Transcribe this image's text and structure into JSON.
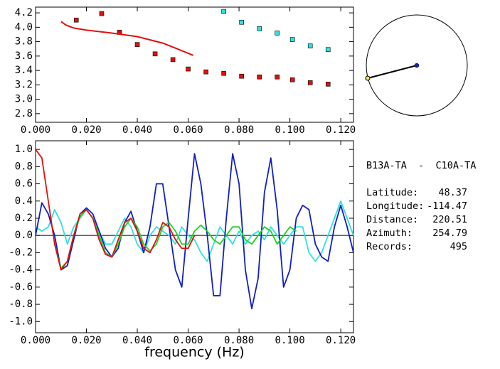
{
  "chart_data": [
    {
      "type": "scatter",
      "xlim": [
        0,
        0.125
      ],
      "ylim": [
        2.68,
        4.28
      ],
      "xticks": [
        {
          "value": 0,
          "label": "0.000"
        },
        {
          "value": 0.02,
          "label": "0.020"
        },
        {
          "value": 0.04,
          "label": "0.040"
        },
        {
          "value": 0.06,
          "label": "0.060"
        },
        {
          "value": 0.08,
          "label": "0.080"
        },
        {
          "value": 0.1,
          "label": "0.100"
        },
        {
          "value": 0.12,
          "label": "0.120"
        }
      ],
      "yticks": [
        2.8,
        {
          "value": 3,
          "label": "3.0"
        },
        3.2,
        3.4,
        3.6,
        3.8,
        {
          "value": 4,
          "label": "4.0"
        },
        4.2
      ],
      "series": [
        {
          "marker": "square",
          "color": "#e01010",
          "x": [
            0.016,
            0.026,
            0.033,
            0.04,
            0.047,
            0.054,
            0.06,
            0.067,
            0.074,
            0.081,
            0.088,
            0.095,
            0.101,
            0.108,
            0.115
          ],
          "values": [
            4.1,
            4.19,
            3.93,
            3.76,
            3.63,
            3.55,
            3.42,
            3.38,
            3.36,
            3.32,
            3.31,
            3.31,
            3.27,
            3.23,
            3.21
          ]
        },
        {
          "marker": "square",
          "color": "#30e0e0",
          "x": [
            0.074,
            0.081,
            0.088,
            0.095,
            0.101,
            0.108,
            0.115
          ],
          "values": [
            4.22,
            4.07,
            3.98,
            3.92,
            3.83,
            3.74,
            3.69
          ]
        },
        {
          "marker": "line",
          "color": "#e01010",
          "x": [
            0.01,
            0.012,
            0.015,
            0.02,
            0.03,
            0.04,
            0.05,
            0.055,
            0.062
          ],
          "values": [
            4.08,
            4.03,
            3.99,
            3.96,
            3.92,
            3.87,
            3.78,
            3.71,
            3.61
          ]
        }
      ]
    },
    {
      "type": "line",
      "xlabel": "frequency (Hz)",
      "xlim": [
        0,
        0.125
      ],
      "ylim": [
        -1.13,
        1.1
      ],
      "xticks": [
        {
          "value": 0,
          "label": "0.000"
        },
        {
          "value": 0.02,
          "label": "0.020"
        },
        {
          "value": 0.04,
          "label": "0.040"
        },
        {
          "value": 0.06,
          "label": "0.060"
        },
        {
          "value": 0.08,
          "label": "0.080"
        },
        {
          "value": 0.1,
          "label": "0.100"
        },
        {
          "value": 0.12,
          "label": "0.120"
        }
      ],
      "yticks": [
        {
          "value": -1,
          "label": "-1.0"
        },
        -0.8,
        -0.6,
        -0.4,
        -0.2,
        {
          "value": 0,
          "label": "0.0"
        },
        0.2,
        0.4,
        0.6,
        0.8,
        {
          "value": 1,
          "label": "1.0"
        }
      ],
      "zero_line": true,
      "x": [
        0,
        0.0025,
        0.005,
        0.0075,
        0.01,
        0.0125,
        0.015,
        0.0175,
        0.02,
        0.0225,
        0.025,
        0.0275,
        0.03,
        0.0325,
        0.035,
        0.0375,
        0.04,
        0.0425,
        0.045,
        0.0475,
        0.05,
        0.0525,
        0.055,
        0.0575,
        0.06,
        0.0625,
        0.065,
        0.0675,
        0.07,
        0.0725,
        0.075,
        0.0775,
        0.08,
        0.0825,
        0.085,
        0.0875,
        0.09,
        0.0925,
        0.095,
        0.0975,
        0.1,
        0.1025,
        0.105,
        0.1075,
        0.11,
        0.1125,
        0.115,
        0.1175,
        0.12,
        0.1225,
        0.125
      ],
      "series": [
        {
          "color": "#30e0e0",
          "values": [
            0.1,
            0.05,
            0.1,
            0.3,
            0.15,
            -0.1,
            0.1,
            0.2,
            0.3,
            0.2,
            0.05,
            -0.1,
            -0.1,
            0.05,
            0.2,
            0.1,
            -0.1,
            -0.2,
            0.0,
            0.1,
            0.05,
            0.0,
            -0.1,
            0.1,
            0.0,
            -0.05,
            -0.2,
            -0.3,
            -0.1,
            0.1,
            0.0,
            -0.1,
            0.05,
            -0.1,
            0.0,
            0.05,
            -0.05,
            0.1,
            0.0,
            -0.1,
            0.0,
            0.1,
            0.1,
            -0.2,
            -0.3,
            -0.2,
            0.0,
            0.2,
            0.4,
            0.2,
            0.0
          ]
        },
        {
          "color": "#1020c0",
          "values": [
            0.0,
            0.38,
            0.25,
            0.0,
            -0.4,
            -0.35,
            -0.05,
            0.25,
            0.32,
            0.25,
            0.05,
            -0.15,
            -0.25,
            -0.15,
            0.15,
            0.28,
            0.05,
            -0.2,
            0.1,
            0.6,
            0.6,
            0.1,
            -0.4,
            -0.6,
            0.2,
            0.95,
            0.6,
            0.0,
            -0.7,
            -0.7,
            0.2,
            0.95,
            0.6,
            -0.4,
            -0.85,
            -0.5,
            0.5,
            0.9,
            0.3,
            -0.6,
            -0.4,
            0.2,
            0.35,
            0.3,
            -0.1,
            -0.25,
            -0.3,
            0.1,
            0.35,
            0.1,
            -0.2
          ]
        },
        {
          "color": "#20d020",
          "values": [
            null,
            null,
            null,
            -0.1,
            -0.38,
            -0.3,
            0.0,
            0.22,
            0.3,
            0.2,
            0.0,
            -0.2,
            -0.25,
            -0.1,
            0.1,
            0.2,
            0.1,
            -0.1,
            -0.18,
            -0.1,
            0.1,
            0.15,
            0.05,
            -0.1,
            -0.1,
            0.05,
            0.12,
            0.05,
            -0.05,
            -0.1,
            0.0,
            0.1,
            0.1,
            -0.05,
            -0.1,
            0.0,
            0.1,
            0.05,
            -0.1,
            0.0,
            0.1,
            0.05,
            null,
            null,
            null,
            null,
            null,
            null,
            null,
            null,
            null
          ]
        },
        {
          "color": "#e01010",
          "values": [
            1.0,
            0.9,
            0.4,
            -0.1,
            -0.4,
            -0.3,
            0.0,
            0.25,
            0.3,
            0.2,
            -0.05,
            -0.22,
            -0.25,
            -0.05,
            0.15,
            0.2,
            0.05,
            -0.15,
            -0.2,
            -0.05,
            0.15,
            0.1,
            -0.05,
            -0.15,
            -0.15,
            0.0,
            null,
            null,
            null,
            null,
            null,
            null,
            null,
            null,
            null,
            null,
            null,
            null,
            null,
            null,
            null,
            null,
            null,
            null,
            null,
            null,
            null,
            null,
            null,
            null,
            null
          ]
        }
      ]
    }
  ],
  "info": {
    "title": "B13A-TA  -  C10A-TA",
    "rows": [
      [
        "Latitude:",
        "48.37"
      ],
      [
        "Longitude:",
        "-114.47"
      ],
      [
        "Distance:",
        "220.51"
      ],
      [
        "Azimuth:",
        "254.79"
      ],
      [
        "Records:",
        "495"
      ]
    ]
  }
}
